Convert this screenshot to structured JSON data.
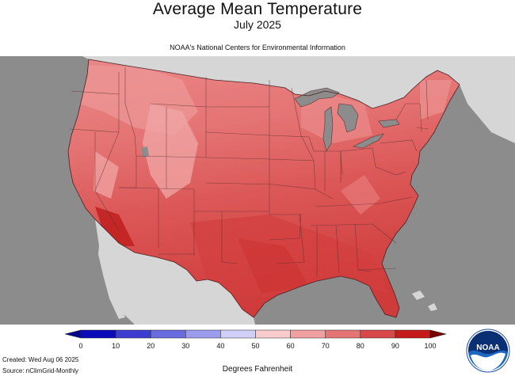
{
  "title": "Average Mean Temperature",
  "subtitle": "July 2025",
  "agency_line": "NOAA's National Centers for Environmental Information",
  "units_label": "Degrees Fahrenheit",
  "created": "Created: Wed Aug 06 2025",
  "source": "Source: nClimGrid-Monthly",
  "logo_text": "NOAA",
  "colorbar": {
    "ticks": [
      "0",
      "10",
      "20",
      "30",
      "40",
      "50",
      "60",
      "70",
      "80",
      "90",
      "100"
    ],
    "colors": [
      "#0a0ab8",
      "#3d3dd0",
      "#6b6be0",
      "#9c9cee",
      "#cfcff8",
      "#f8cccc",
      "#f0a0a0",
      "#e57474",
      "#d84848",
      "#c41a1a"
    ],
    "end_low": "#06068a",
    "end_high": "#7a0000"
  },
  "colors": {
    "ocean": "#8c8c8c",
    "land_outside": "#d6d6d6",
    "lakes": "#8c8c8c",
    "state_border": "#5a3030"
  }
}
